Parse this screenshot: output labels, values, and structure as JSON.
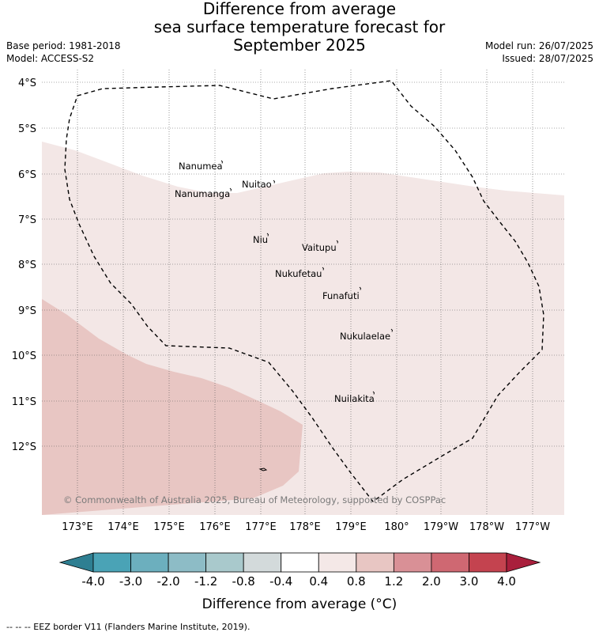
{
  "title": {
    "line1": "Difference from average",
    "line2": "sea surface temperature forecast for",
    "line3": "September 2025"
  },
  "meta": {
    "base_period": "Base period: 1981-2018",
    "model": "Model: ACCESS-S2",
    "model_run": "Model run: 26/07/2025",
    "issued": "Issued: 28/07/2025"
  },
  "map": {
    "lat_labels": [
      "4°S",
      "5°S",
      "6°S",
      "7°S",
      "8°S",
      "9°S",
      "10°S",
      "11°S",
      "12°S"
    ],
    "lon_labels": [
      "173°E",
      "174°E",
      "175°E",
      "176°E",
      "177°E",
      "178°E",
      "179°E",
      "180°",
      "179°W",
      "178°W",
      "177°W"
    ],
    "islands": [
      {
        "name": "Nanumea"
      },
      {
        "name": "Nuitao"
      },
      {
        "name": "Nanumanga"
      },
      {
        "name": "Niu"
      },
      {
        "name": "Vaitupu"
      },
      {
        "name": "Nukufetau"
      },
      {
        "name": "Funafuti"
      },
      {
        "name": "Nukulaelae"
      },
      {
        "name": "Nuilakita"
      }
    ],
    "copyright": "© Commonwealth of Australia 2025, Bureau of Meteorology, supported by COSPPac",
    "region_colors": {
      "light": "#f3e7e6",
      "medium": "#e8c6c3"
    }
  },
  "colorbar": {
    "ticks": [
      "-4.0",
      "-3.0",
      "-2.0",
      "-1.2",
      "-0.8",
      "-0.4",
      "0.4",
      "0.8",
      "1.2",
      "2.0",
      "3.0",
      "4.0"
    ],
    "colors": [
      "#2e7f92",
      "#4aa3b6",
      "#6cafbe",
      "#8dbcc6",
      "#a9c9cc",
      "#d3dadb",
      "#ffffff",
      "#f4e8e7",
      "#e8c6c3",
      "#d99096",
      "#cf6872",
      "#c4434f",
      "#a91f3c"
    ],
    "title": "Difference from average (°C)"
  },
  "footnote": "--  --  -- EEZ border V11 (Flanders Marine Institute, 2019)."
}
